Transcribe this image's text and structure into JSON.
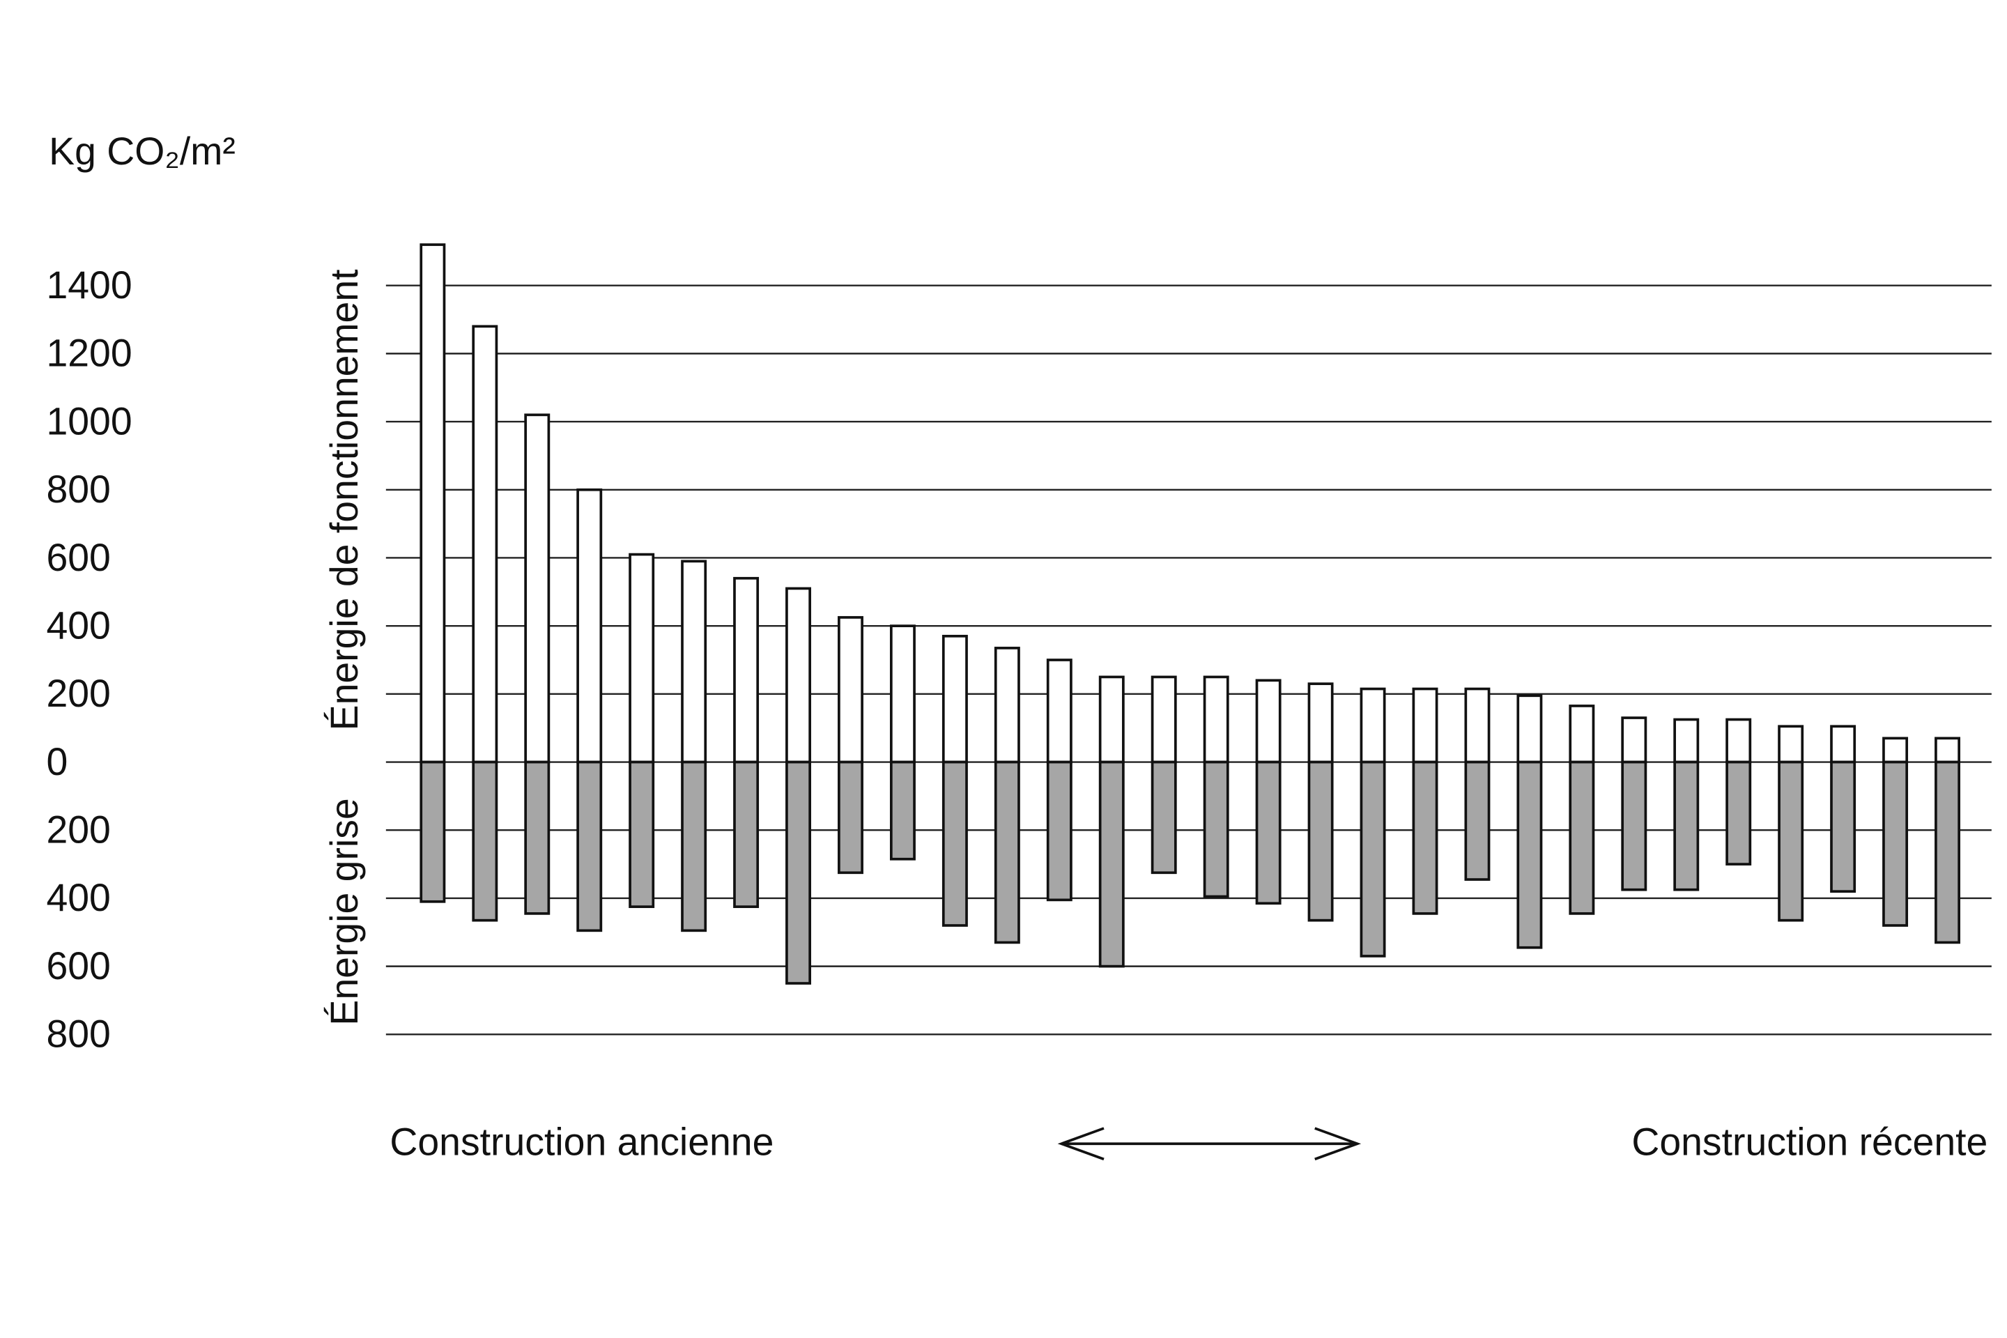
{
  "chart_data": {
    "type": "diverging-bar",
    "y_label": "Kg CO₂/m²",
    "x_label_left": "Construction ancienne",
    "x_label_right": "Construction récente",
    "ylim": [
      -800,
      1600
    ],
    "yticks": [
      {
        "value": -800,
        "label": "800"
      },
      {
        "value": -600,
        "label": "600"
      },
      {
        "value": -400,
        "label": "400"
      },
      {
        "value": -200,
        "label": "200"
      },
      0,
      200,
      400,
      600,
      800,
      1000,
      1200,
      1400
    ],
    "grid": true,
    "series": [
      {
        "name": "Énergie de fonctionnement",
        "color": "#ffffff",
        "values": [
          1520,
          1280,
          1020,
          800,
          610,
          590,
          540,
          510,
          425,
          400,
          370,
          335,
          300,
          250,
          250,
          250,
          240,
          230,
          215,
          215,
          215,
          195,
          165,
          130,
          125,
          125,
          105,
          105,
          70,
          70
        ]
      },
      {
        "name": "Énergie grise",
        "color": "#a6a6a6",
        "values": [
          -410,
          -465,
          -445,
          -495,
          -425,
          -495,
          -425,
          -650,
          -325,
          -285,
          -480,
          -530,
          -405,
          -600,
          -325,
          -395,
          -415,
          -465,
          -570,
          -445,
          -345,
          -545,
          -445,
          -375,
          -375,
          -300,
          -465,
          -380,
          -480,
          -530
        ]
      }
    ]
  }
}
